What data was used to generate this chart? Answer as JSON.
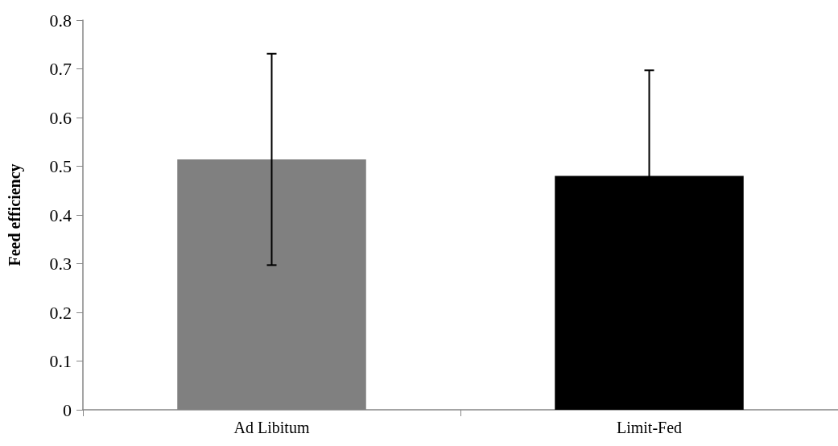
{
  "chart_data": {
    "type": "bar",
    "ylabel": "Feed efficiency",
    "categories": [
      "Ad Libitum",
      "Limit-Fed"
    ],
    "values": [
      0.514,
      0.48
    ],
    "colors": [
      "#808080",
      "#000000"
    ],
    "errors": [
      0.217,
      0.217
    ],
    "ylim": [
      0,
      0.8
    ],
    "yticks": [
      0,
      0.1,
      0.2,
      0.3,
      0.4,
      0.5,
      0.6,
      0.7,
      0.8
    ],
    "grid": false
  }
}
